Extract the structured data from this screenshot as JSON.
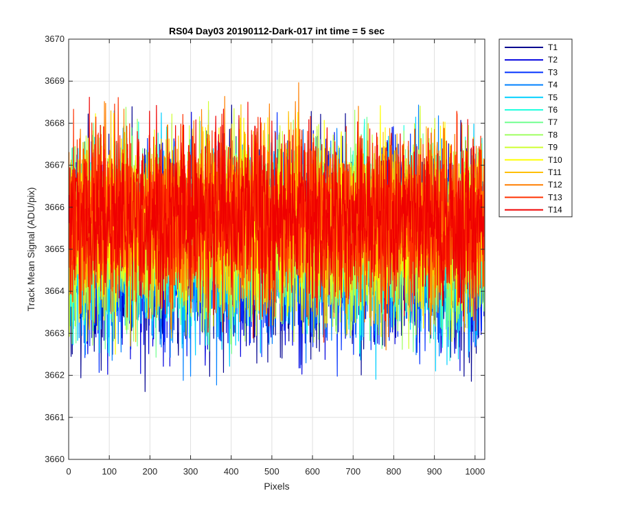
{
  "chart_data": {
    "type": "line",
    "title": "RS04 Day03 20190112-Dark-017 int time = 5 sec",
    "xlabel": "Pixels",
    "ylabel": "Track Mean Signal (ADU/pix)",
    "xlim": [
      0,
      1024
    ],
    "ylim": [
      3660,
      3670
    ],
    "xticks": [
      0,
      100,
      200,
      300,
      400,
      500,
      600,
      700,
      800,
      900,
      1000
    ],
    "yticks": [
      3660,
      3661,
      3662,
      3663,
      3664,
      3665,
      3666,
      3667,
      3668,
      3669,
      3670
    ],
    "grid": true,
    "legend_position": "outside-top-right",
    "x_range": {
      "start": 1,
      "end": 1024,
      "step": 1
    },
    "series": [
      {
        "name": "T1",
        "color": "#00008f",
        "mean": 3664.9,
        "spread": 1.1
      },
      {
        "name": "T2",
        "color": "#0000df",
        "mean": 3664.95,
        "spread": 1.05
      },
      {
        "name": "T3",
        "color": "#0030ff",
        "mean": 3665.0,
        "spread": 1.0
      },
      {
        "name": "T4",
        "color": "#0080ff",
        "mean": 3665.05,
        "spread": 1.0
      },
      {
        "name": "T5",
        "color": "#00cfff",
        "mean": 3665.1,
        "spread": 1.0
      },
      {
        "name": "T6",
        "color": "#20ffdf",
        "mean": 3665.2,
        "spread": 0.95
      },
      {
        "name": "T7",
        "color": "#70ff8f",
        "mean": 3665.3,
        "spread": 0.95
      },
      {
        "name": "T8",
        "color": "#9fff60",
        "mean": 3665.4,
        "spread": 0.95
      },
      {
        "name": "T9",
        "color": "#cfff30",
        "mean": 3665.5,
        "spread": 0.95
      },
      {
        "name": "T10",
        "color": "#ffff00",
        "mean": 3665.6,
        "spread": 0.95
      },
      {
        "name": "T11",
        "color": "#ffbf00",
        "mean": 3665.65,
        "spread": 0.95
      },
      {
        "name": "T12",
        "color": "#ff7f00",
        "mean": 3665.7,
        "spread": 0.95
      },
      {
        "name": "T13",
        "color": "#ff3000",
        "mean": 3665.75,
        "spread": 0.95
      },
      {
        "name": "T14",
        "color": "#ef0000",
        "mean": 3665.8,
        "spread": 0.95
      }
    ]
  }
}
